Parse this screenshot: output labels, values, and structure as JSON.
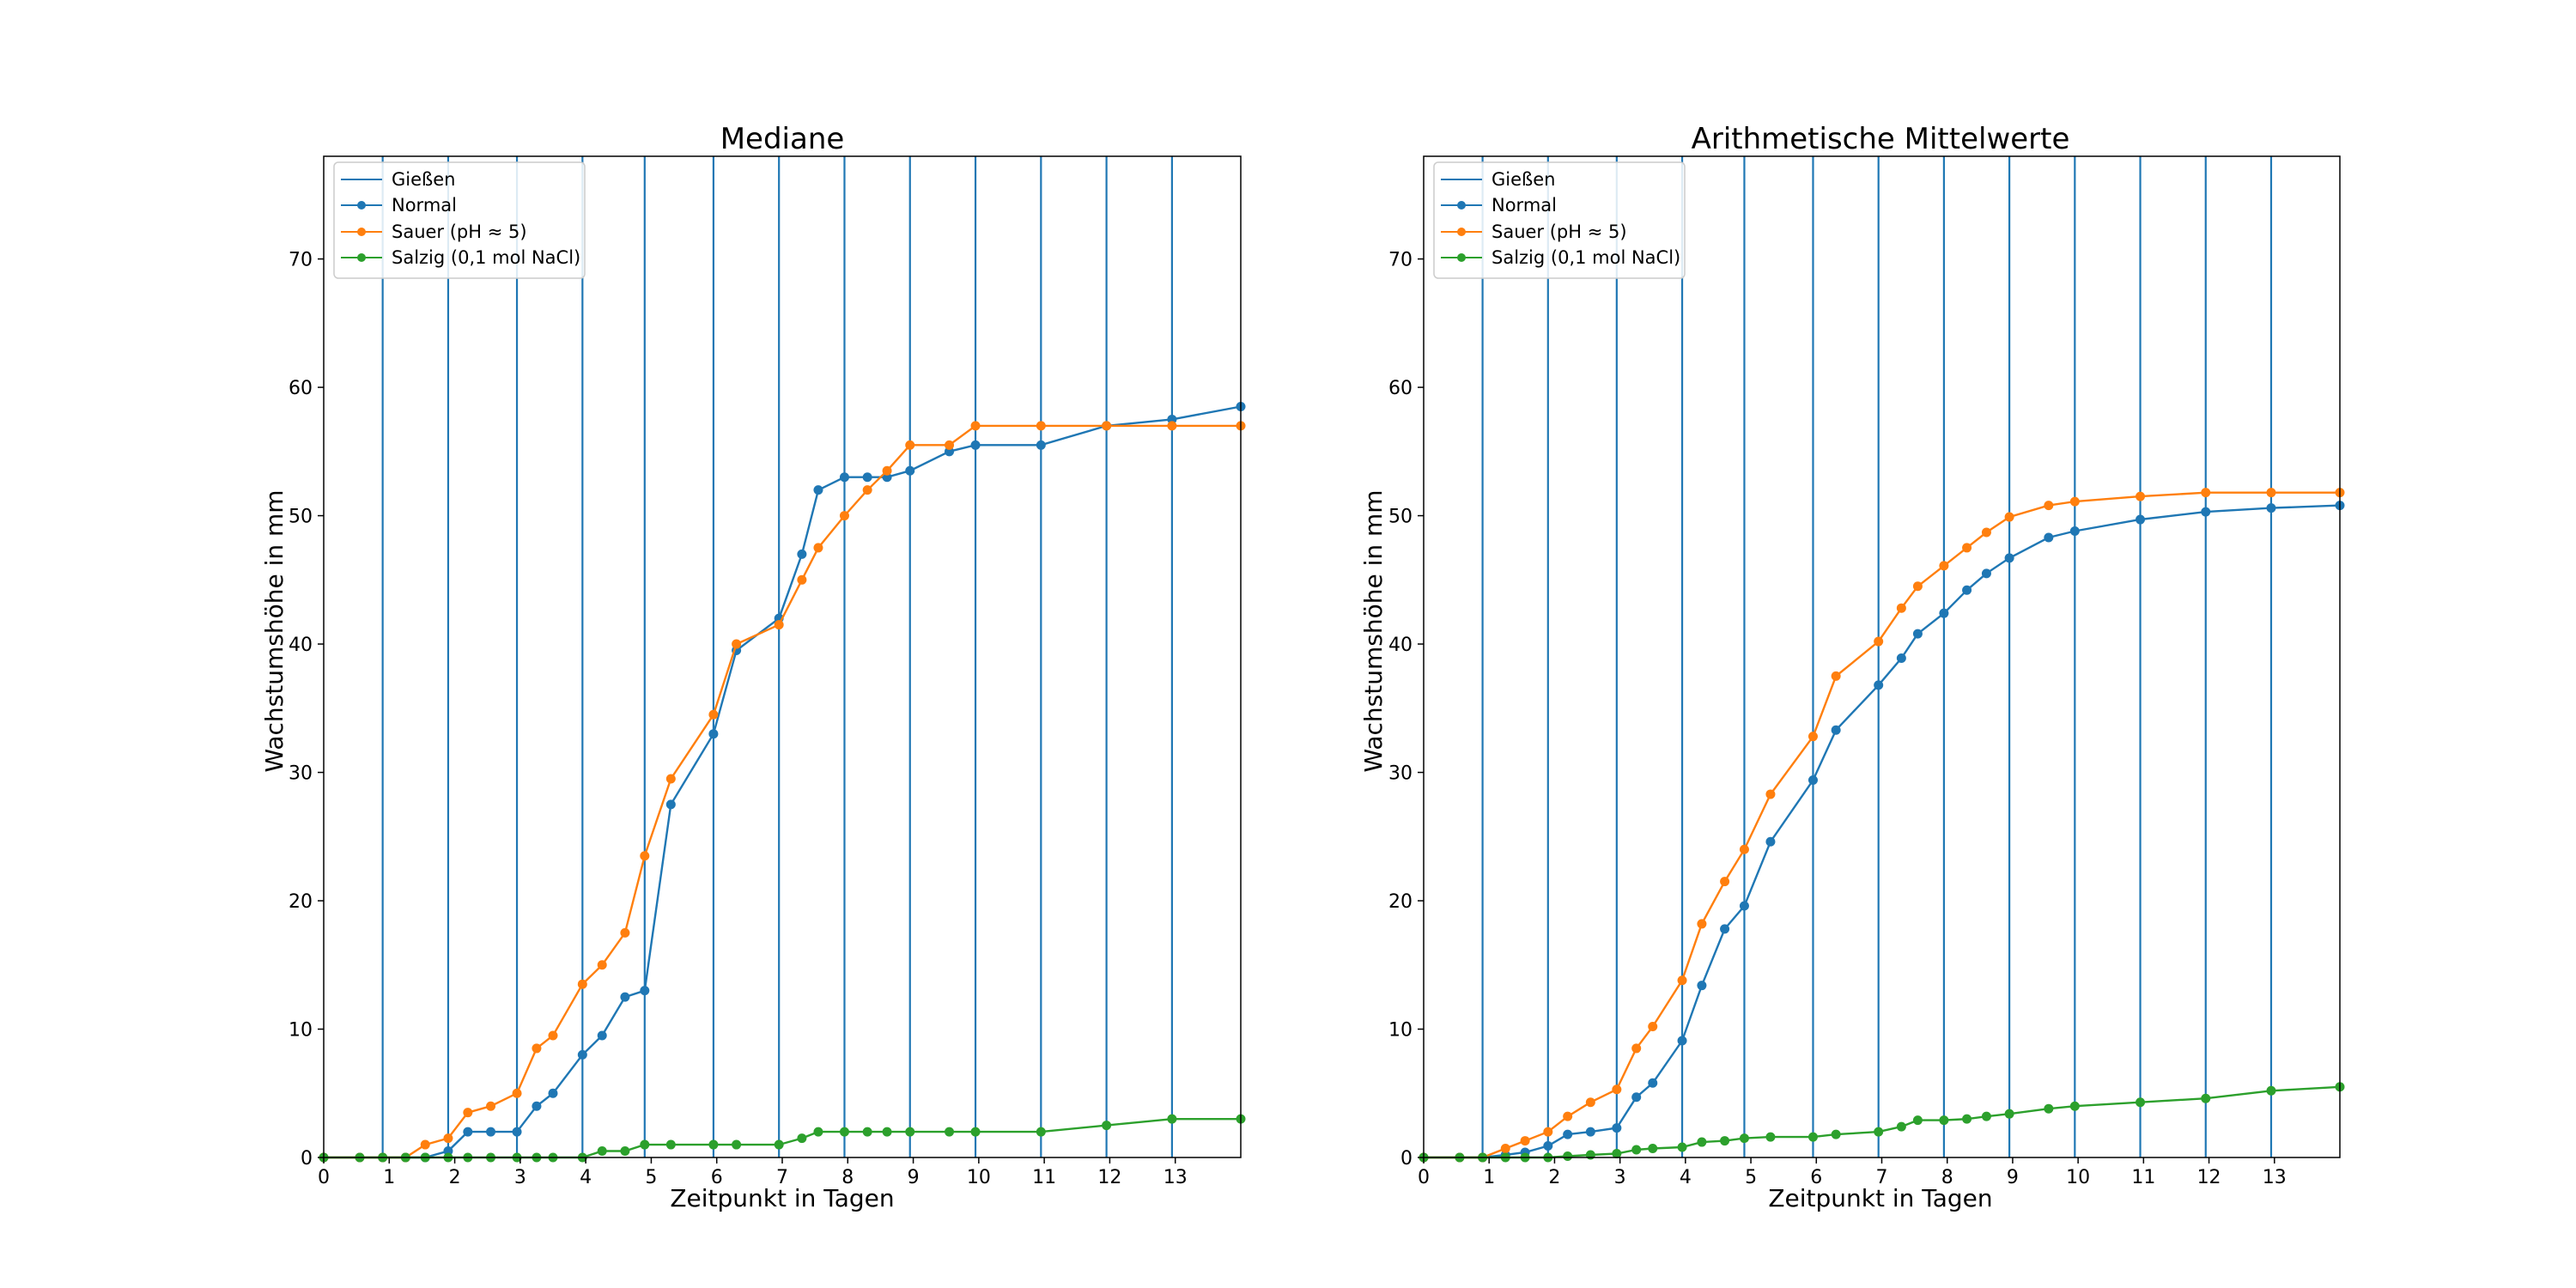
{
  "chart_data": [
    {
      "type": "line",
      "title": "Mediane",
      "xlabel": "Zeitpunkt in Tagen",
      "ylabel": "Wachstumshöhe in mm",
      "xlim": [
        0,
        14
      ],
      "ylim": [
        0,
        78
      ],
      "xticks": [
        0,
        1,
        2,
        3,
        4,
        5,
        6,
        7,
        8,
        9,
        10,
        11,
        12,
        13
      ],
      "yticks": [
        0,
        10,
        20,
        30,
        40,
        50,
        60,
        70
      ],
      "grid": false,
      "legend_position": "top-left",
      "watering_days": [
        0.9,
        1.9,
        2.95,
        3.95,
        4.9,
        5.95,
        6.95,
        7.95,
        8.95,
        9.95,
        10.95,
        11.95,
        12.95
      ],
      "series": [
        {
          "name": "Gießen",
          "kind": "vlines",
          "color": "#1f77b4"
        },
        {
          "name": "Normal",
          "color": "#1f77b4",
          "x": [
            0,
            0.55,
            0.9,
            1.25,
            1.55,
            1.9,
            2.2,
            2.55,
            2.95,
            3.25,
            3.5,
            3.95,
            4.25,
            4.6,
            4.9,
            5.3,
            5.95,
            6.3,
            6.95,
            7.3,
            7.55,
            7.95,
            8.3,
            8.6,
            8.95,
            9.55,
            9.95,
            10.95,
            11.95,
            12.95,
            14
          ],
          "values": [
            0,
            0,
            0,
            0,
            0,
            0.5,
            2,
            2,
            2,
            4,
            5,
            8,
            9.5,
            12.5,
            13,
            27.5,
            33,
            39.5,
            42,
            47,
            52,
            53,
            53,
            53,
            53.5,
            55,
            55.5,
            55.5,
            57,
            57.5,
            58.5
          ]
        },
        {
          "name": "Sauer (pH ≈ 5)",
          "color": "#ff7f0e",
          "x": [
            0,
            0.55,
            0.9,
            1.25,
            1.55,
            1.9,
            2.2,
            2.55,
            2.95,
            3.25,
            3.5,
            3.95,
            4.25,
            4.6,
            4.9,
            5.3,
            5.95,
            6.3,
            6.95,
            7.3,
            7.55,
            7.95,
            8.3,
            8.6,
            8.95,
            9.55,
            9.95,
            10.95,
            11.95,
            12.95,
            14
          ],
          "values": [
            0,
            0,
            0,
            0,
            1,
            1.5,
            3.5,
            4,
            5,
            8.5,
            9.5,
            13.5,
            15,
            17.5,
            23.5,
            29.5,
            34.5,
            40,
            41.5,
            45,
            47.5,
            50,
            52,
            53.5,
            55.5,
            55.5,
            57,
            57,
            57,
            57,
            57
          ]
        },
        {
          "name": "Salzig (0,1 mol NaCl)",
          "color": "#2ca02c",
          "x": [
            0,
            0.55,
            0.9,
            1.25,
            1.55,
            1.9,
            2.2,
            2.55,
            2.95,
            3.25,
            3.5,
            3.95,
            4.25,
            4.6,
            4.9,
            5.3,
            5.95,
            6.3,
            6.95,
            7.3,
            7.55,
            7.95,
            8.3,
            8.6,
            8.95,
            9.55,
            9.95,
            10.95,
            11.95,
            12.95,
            14
          ],
          "values": [
            0,
            0,
            0,
            0,
            0,
            0,
            0,
            0,
            0,
            0,
            0,
            0,
            0.5,
            0.5,
            1,
            1,
            1,
            1,
            1,
            1.5,
            2,
            2,
            2,
            2,
            2,
            2,
            2,
            2,
            2.5,
            3,
            3
          ]
        }
      ]
    },
    {
      "type": "line",
      "title": "Arithmetische Mittelwerte",
      "xlabel": "Zeitpunkt in Tagen",
      "ylabel": "Wachstumshöhe in mm",
      "xlim": [
        0,
        14
      ],
      "ylim": [
        0,
        78
      ],
      "xticks": [
        0,
        1,
        2,
        3,
        4,
        5,
        6,
        7,
        8,
        9,
        10,
        11,
        12,
        13
      ],
      "yticks": [
        0,
        10,
        20,
        30,
        40,
        50,
        60,
        70
      ],
      "grid": false,
      "legend_position": "top-left",
      "watering_days": [
        0.9,
        1.9,
        2.95,
        3.95,
        4.9,
        5.95,
        6.95,
        7.95,
        8.95,
        9.95,
        10.95,
        11.95,
        12.95
      ],
      "series": [
        {
          "name": "Gießen",
          "kind": "vlines",
          "color": "#1f77b4"
        },
        {
          "name": "Normal",
          "color": "#1f77b4",
          "x": [
            0,
            0.55,
            0.9,
            1.25,
            1.55,
            1.9,
            2.2,
            2.55,
            2.95,
            3.25,
            3.5,
            3.95,
            4.25,
            4.6,
            4.9,
            5.3,
            5.95,
            6.3,
            6.95,
            7.3,
            7.55,
            7.95,
            8.3,
            8.6,
            8.95,
            9.55,
            9.95,
            10.95,
            11.95,
            12.95,
            14
          ],
          "values": [
            0,
            0,
            0,
            0.2,
            0.4,
            0.9,
            1.8,
            2,
            2.3,
            4.7,
            5.8,
            9.1,
            13.4,
            17.8,
            19.6,
            24.6,
            29.4,
            33.3,
            36.8,
            38.9,
            40.8,
            42.4,
            44.2,
            45.5,
            46.7,
            48.3,
            48.8,
            49.7,
            50.3,
            50.6,
            50.8
          ]
        },
        {
          "name": "Sauer (pH ≈ 5)",
          "color": "#ff7f0e",
          "x": [
            0,
            0.55,
            0.9,
            1.25,
            1.55,
            1.9,
            2.2,
            2.55,
            2.95,
            3.25,
            3.5,
            3.95,
            4.25,
            4.6,
            4.9,
            5.3,
            5.95,
            6.3,
            6.95,
            7.3,
            7.55,
            7.95,
            8.3,
            8.6,
            8.95,
            9.55,
            9.95,
            10.95,
            11.95,
            12.95,
            14
          ],
          "values": [
            0,
            0,
            0,
            0.7,
            1.3,
            2,
            3.2,
            4.3,
            5.3,
            8.5,
            10.2,
            13.8,
            18.2,
            21.5,
            24,
            28.3,
            32.8,
            37.5,
            40.2,
            42.8,
            44.5,
            46.1,
            47.5,
            48.7,
            49.9,
            50.8,
            51.1,
            51.5,
            51.8,
            51.8,
            51.8
          ]
        },
        {
          "name": "Salzig (0,1 mol NaCl)",
          "color": "#2ca02c",
          "x": [
            0,
            0.55,
            0.9,
            1.25,
            1.55,
            1.9,
            2.2,
            2.55,
            2.95,
            3.25,
            3.5,
            3.95,
            4.25,
            4.6,
            4.9,
            5.3,
            5.95,
            6.3,
            6.95,
            7.3,
            7.55,
            7.95,
            8.3,
            8.6,
            8.95,
            9.55,
            9.95,
            10.95,
            11.95,
            12.95,
            14
          ],
          "values": [
            0,
            0,
            0,
            0,
            0,
            0,
            0.1,
            0.2,
            0.3,
            0.6,
            0.7,
            0.8,
            1.2,
            1.3,
            1.5,
            1.6,
            1.6,
            1.8,
            2,
            2.4,
            2.9,
            2.9,
            3,
            3.2,
            3.4,
            3.8,
            4,
            4.3,
            4.6,
            5.2,
            5.5
          ]
        }
      ]
    }
  ]
}
